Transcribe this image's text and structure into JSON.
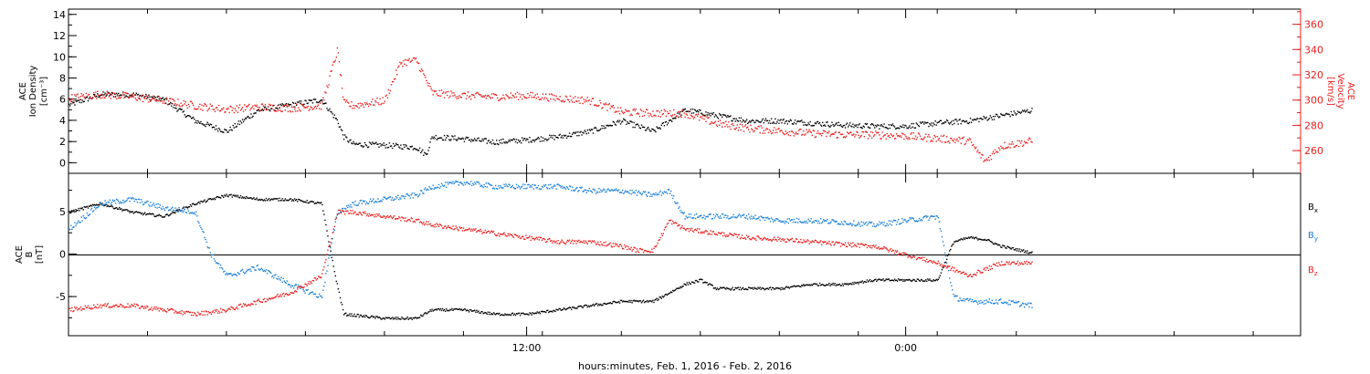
{
  "colors": {
    "black": "#000000",
    "red": "#e8201e",
    "blue": "#1a7fd8"
  },
  "xaxis": {
    "label": "hours:minutes, Feb.  1, 2016 - Feb.  2, 2016",
    "tick_labels": [
      {
        "hour": 12,
        "label": "12:00"
      },
      {
        "hour": 24,
        "label": "0:00"
      }
    ],
    "range_hours": [
      -2.5,
      36.5
    ],
    "minor_tick_step_hours": 2.5
  },
  "chart_data": [
    {
      "type": "scatter",
      "panel": "top",
      "left_axis": {
        "label_lines": [
          "ACE",
          "Ion Density",
          "[cm⁻³]"
        ],
        "ylim": [
          -1,
          14.5
        ],
        "ticks": [
          0,
          2,
          4,
          6,
          8,
          10,
          12,
          14
        ],
        "tick_labels": [
          "0",
          "2",
          "4",
          "6",
          "8",
          "10",
          "12",
          "14"
        ]
      },
      "right_axis": {
        "label_lines": [
          "ACE",
          "Velocity",
          "[km/s]"
        ],
        "ylim": [
          242,
          372
        ],
        "ticks": [
          260,
          280,
          300,
          320,
          340,
          360
        ],
        "tick_labels": [
          "260",
          "280",
          "300",
          "320",
          "340",
          "360"
        ],
        "color": "#e8201e"
      },
      "series": [
        {
          "color": "#000000",
          "axis": "left",
          "noise": 0.25,
          "x": [
            -2.5,
            -1.5,
            -0.5,
            0.5,
            1.5,
            2.5,
            3.5,
            4.5,
            5.5,
            6.0,
            6.2,
            6.5,
            7.5,
            8.5,
            8.8,
            9.0,
            10.0,
            11.0,
            12.0,
            13.0,
            14.0,
            15.0,
            16.0,
            17.0,
            17.5,
            18.0,
            19.0,
            20.0,
            21.0,
            22.0,
            23.0,
            24.0,
            25.0,
            26.0,
            27.0,
            28.0
          ],
          "y": [
            5.5,
            6.5,
            6.5,
            6.0,
            4.0,
            3.0,
            5.0,
            5.5,
            6.0,
            4.0,
            2.5,
            1.8,
            1.7,
            1.5,
            0.8,
            2.5,
            2.3,
            2.0,
            2.2,
            2.5,
            3.0,
            4.0,
            3.0,
            5.0,
            4.8,
            4.5,
            4.0,
            4.0,
            3.8,
            3.6,
            3.5,
            3.5,
            3.8,
            4.0,
            4.5,
            5.0
          ]
        },
        {
          "color": "#e8201e",
          "axis": "right",
          "noise": 3,
          "x": [
            -2.5,
            -1.5,
            -0.5,
            0.5,
            1.5,
            2.5,
            3.5,
            4.5,
            5.5,
            6.0,
            6.2,
            6.5,
            7.5,
            8.0,
            8.5,
            9.0,
            10.0,
            11.0,
            12.0,
            13.0,
            14.0,
            15.0,
            16.0,
            17.0,
            18.0,
            19.0,
            20.0,
            21.0,
            22.0,
            23.0,
            24.0,
            25.0,
            26.0,
            26.5,
            27.0,
            28.0
          ],
          "y": [
            302,
            305,
            303,
            300,
            296,
            293,
            295,
            294,
            296,
            340,
            298,
            296,
            300,
            330,
            332,
            306,
            304,
            303,
            304,
            302,
            300,
            291,
            290,
            290,
            282,
            278,
            276,
            274,
            273,
            273,
            272,
            270,
            268,
            252,
            264,
            268
          ]
        }
      ]
    },
    {
      "type": "scatter",
      "panel": "bottom",
      "left_axis": {
        "label_lines": [
          "ACE",
          "B",
          "[nT]"
        ],
        "ylim": [
          -9.6,
          9.5
        ],
        "ticks": [
          -5,
          0,
          5
        ],
        "tick_labels": [
          "-5",
          "0",
          "5"
        ],
        "zero_line": true
      },
      "legend": {
        "placement": "right",
        "entries": [
          {
            "text": "B",
            "sub": "x",
            "color": "#000000"
          },
          {
            "text": "B",
            "sub": "y",
            "color": "#1a7fd8"
          },
          {
            "text": "B",
            "sub": "z",
            "color": "#e8201e"
          }
        ]
      },
      "series": [
        {
          "name": "Bx",
          "color": "#000000",
          "noise": 0.15,
          "x": [
            -2.5,
            -1.5,
            -0.5,
            0.5,
            1.5,
            2.5,
            3.5,
            4.5,
            5.5,
            5.9,
            6.2,
            7.5,
            8.5,
            9.0,
            10.0,
            11.0,
            12.0,
            13.0,
            14.0,
            15.0,
            16.0,
            17.0,
            17.5,
            18.0,
            19.0,
            20.0,
            21.0,
            22.0,
            23.0,
            24.0,
            25.0,
            25.5,
            26.0,
            26.5,
            27.0,
            28.0
          ],
          "y": [
            5.0,
            6.0,
            5.0,
            4.5,
            6.0,
            7.0,
            6.5,
            6.5,
            6.0,
            -2.0,
            -7.0,
            -7.5,
            -7.5,
            -6.5,
            -6.5,
            -7.0,
            -7.0,
            -6.5,
            -6.0,
            -5.5,
            -5.5,
            -3.5,
            -3.0,
            -4.0,
            -4.0,
            -4.0,
            -3.5,
            -3.5,
            -3.0,
            -3.0,
            -3.0,
            1.5,
            2.0,
            1.8,
            1.0,
            0.2
          ]
        },
        {
          "name": "By",
          "color": "#1a7fd8",
          "noise": 0.3,
          "x": [
            -2.5,
            -1.5,
            -0.5,
            0.5,
            1.5,
            2.0,
            2.5,
            3.5,
            4.5,
            5.5,
            6.0,
            6.5,
            7.5,
            8.5,
            9.0,
            10.0,
            11.0,
            12.0,
            13.0,
            14.0,
            15.0,
            16.0,
            16.5,
            17.0,
            18.0,
            19.0,
            20.0,
            21.0,
            22.0,
            23.0,
            24.0,
            25.0,
            25.5,
            26.0,
            27.0,
            28.0
          ],
          "y": [
            3.0,
            6.0,
            6.5,
            5.5,
            5.0,
            0.0,
            -2.5,
            -1.5,
            -3.5,
            -5.0,
            5.0,
            6.0,
            6.5,
            7.0,
            8.0,
            8.5,
            8.0,
            8.0,
            8.0,
            7.5,
            7.5,
            7.0,
            7.5,
            4.5,
            4.5,
            4.5,
            4.0,
            4.0,
            3.8,
            3.5,
            4.0,
            4.5,
            -5.0,
            -5.5,
            -5.5,
            -6.0
          ]
        },
        {
          "name": "Bz",
          "color": "#e8201e",
          "noise": 0.25,
          "x": [
            -2.5,
            -1.5,
            -0.5,
            0.5,
            1.5,
            2.5,
            3.5,
            4.5,
            5.5,
            6.0,
            6.5,
            7.5,
            8.5,
            9.0,
            10.0,
            11.0,
            12.0,
            13.0,
            14.0,
            15.0,
            15.5,
            16.0,
            16.5,
            17.0,
            18.0,
            19.0,
            20.0,
            21.0,
            22.0,
            23.0,
            24.0,
            25.0,
            26.0,
            27.0,
            28.0
          ],
          "y": [
            -6.5,
            -6.0,
            -6.0,
            -6.5,
            -7.0,
            -6.5,
            -5.5,
            -4.5,
            -2.5,
            5.0,
            5.0,
            4.5,
            4.0,
            3.5,
            3.0,
            2.5,
            2.0,
            1.5,
            1.5,
            1.0,
            0.5,
            0.5,
            4.0,
            3.0,
            2.5,
            2.0,
            1.8,
            1.5,
            1.2,
            1.0,
            0.0,
            -1.0,
            -2.5,
            -1.0,
            -1.0
          ]
        }
      ]
    }
  ]
}
